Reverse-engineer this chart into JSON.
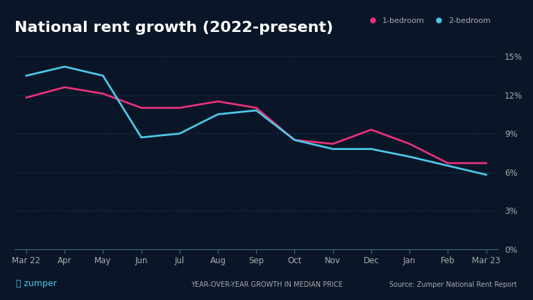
{
  "title": "National rent growth (2022-present)",
  "subtitle": "YEAR-OVER-YEAR GROWTH IN MEDIAN PRICE",
  "source": "Source: Zumper National Rent Report",
  "background_color": "#0a1628",
  "plot_bg_color": "#0a1628",
  "grid_color": "#1e3a5f",
  "x_labels": [
    "Mar 22",
    "Apr",
    "May",
    "Jun",
    "Jul",
    "Aug",
    "Sep",
    "Oct",
    "Nov",
    "Dec",
    "Jan",
    "Feb",
    "Mar 23"
  ],
  "one_bed": [
    11.8,
    12.6,
    12.1,
    11.0,
    11.0,
    11.5,
    11.0,
    8.5,
    8.2,
    9.3,
    8.2,
    6.7,
    6.7
  ],
  "two_bed": [
    13.5,
    14.2,
    13.5,
    8.7,
    9.0,
    10.5,
    10.8,
    8.5,
    7.8,
    7.8,
    7.2,
    6.5,
    5.8
  ],
  "one_bed_color": "#e8317a",
  "two_bed_color": "#4dc8e8",
  "ylim": [
    0,
    16
  ],
  "yticks": [
    0,
    3,
    6,
    9,
    12,
    15
  ],
  "ytick_labels": [
    "0%",
    "3%",
    "6%",
    "9%",
    "12%",
    "15%"
  ],
  "legend_1bed": "1-bedroom",
  "legend_2bed": "2-bedroom",
  "title_color": "#ffffff",
  "tick_color": "#aaaaaa",
  "axis_color": "#4a6a8a",
  "zumper_color": "#4dc8e8",
  "line_width": 2.0
}
